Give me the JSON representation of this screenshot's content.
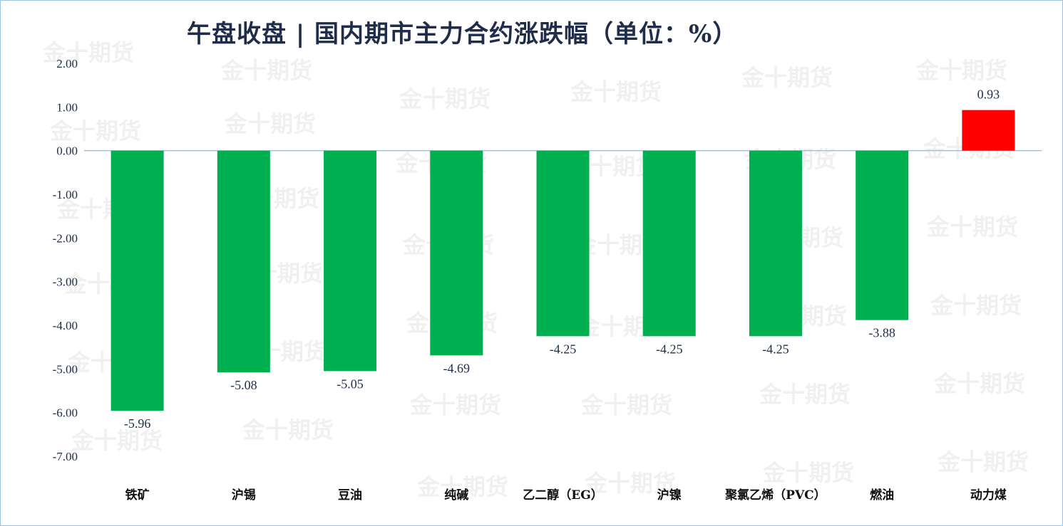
{
  "title": "午盘收盘 | 国内期市主力合约涨跌幅（单位：%）",
  "watermark": "金十期货",
  "colors": {
    "negative": "#00b050",
    "positive": "#ff0000",
    "axis": "#9cc3e0",
    "text": "#1f2d4a"
  },
  "chart_data": {
    "type": "bar",
    "title": "午盘收盘 | 国内期市主力合约涨跌幅（单位：%）",
    "categories": [
      "铁矿",
      "沪锡",
      "豆油",
      "纯碱",
      "乙二醇（EG）",
      "沪镍",
      "聚氯乙烯（PVC）",
      "燃油",
      "动力煤"
    ],
    "values": [
      -5.96,
      -5.08,
      -5.05,
      -4.69,
      -4.25,
      -4.25,
      -4.25,
      -3.88,
      0.93
    ],
    "value_labels": [
      "-5.96",
      "-5.08",
      "-5.05",
      "-4.69",
      "-4.25",
      "-4.25",
      "-4.25",
      "-3.88",
      "0.93"
    ],
    "y_ticks": [
      "2.00",
      "1.00",
      "0.00",
      "-1.00",
      "-2.00",
      "-3.00",
      "-4.00",
      "-5.00",
      "-6.00",
      "-7.00"
    ],
    "ylim": [
      -7,
      2
    ],
    "xlabel": "",
    "ylabel": "",
    "grid": false,
    "legend": "none"
  }
}
